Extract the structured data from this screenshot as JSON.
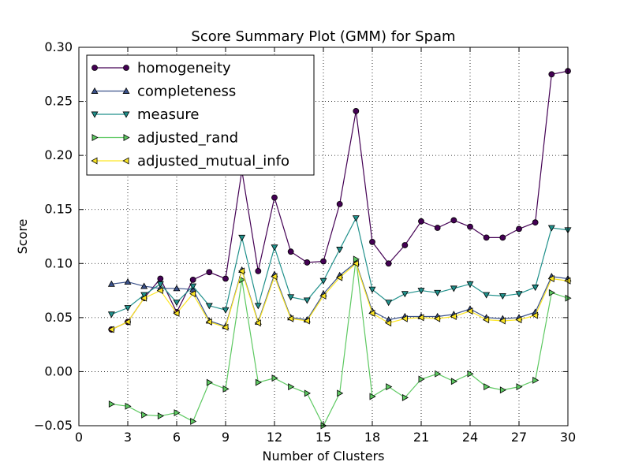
{
  "chart_data": {
    "type": "line",
    "title": "Score Summary Plot (GMM) for Spam",
    "xlabel": "Number of Clusters",
    "ylabel": "Score",
    "xlim": [
      0,
      30
    ],
    "ylim": [
      -0.05,
      0.3
    ],
    "xticks": [
      0,
      3,
      6,
      9,
      12,
      15,
      18,
      21,
      24,
      27,
      30
    ],
    "xtick_labels": [
      "0",
      "3",
      "6",
      "9",
      "12",
      "15",
      "18",
      "21",
      "24",
      "27",
      "30"
    ],
    "yticks": [
      -0.05,
      0.0,
      0.05,
      0.1,
      0.15,
      0.2,
      0.25,
      0.3
    ],
    "ytick_labels": [
      "−0.05",
      "0.00",
      "0.05",
      "0.10",
      "0.15",
      "0.20",
      "0.25",
      "0.30"
    ],
    "grid": true,
    "legend_position": "top-left",
    "x": [
      2,
      3,
      4,
      5,
      6,
      7,
      8,
      9,
      10,
      11,
      12,
      13,
      14,
      15,
      16,
      17,
      18,
      19,
      20,
      21,
      22,
      23,
      24,
      25,
      26,
      27,
      28,
      29,
      30
    ],
    "series": [
      {
        "name": "homogeneity",
        "color": "#440154",
        "marker": "circle",
        "values": [
          0.039,
          0.046,
          0.068,
          0.086,
          0.055,
          0.085,
          0.092,
          0.086,
          0.186,
          0.093,
          0.161,
          0.111,
          0.101,
          0.102,
          0.155,
          0.241,
          0.12,
          0.1,
          0.117,
          0.139,
          0.133,
          0.14,
          0.134,
          0.124,
          0.124,
          0.132,
          0.138,
          0.275,
          0.278
        ]
      },
      {
        "name": "completeness",
        "color": "#3b528b",
        "marker": "triangle-up",
        "values": [
          0.081,
          0.083,
          0.079,
          0.077,
          0.077,
          0.076,
          0.047,
          0.042,
          0.094,
          0.046,
          0.09,
          0.05,
          0.048,
          0.072,
          0.089,
          0.101,
          0.056,
          0.048,
          0.051,
          0.051,
          0.051,
          0.053,
          0.058,
          0.05,
          0.049,
          0.05,
          0.055,
          0.088,
          0.086
        ]
      },
      {
        "name": "measure",
        "color": "#21918c",
        "marker": "triangle-down",
        "values": [
          0.053,
          0.059,
          0.071,
          0.081,
          0.064,
          0.079,
          0.061,
          0.057,
          0.124,
          0.061,
          0.115,
          0.069,
          0.066,
          0.084,
          0.113,
          0.142,
          0.076,
          0.064,
          0.072,
          0.075,
          0.073,
          0.077,
          0.081,
          0.071,
          0.07,
          0.072,
          0.078,
          0.133,
          0.131
        ]
      },
      {
        "name": "adjusted_rand",
        "color": "#5ec962",
        "marker": "triangle-right",
        "values": [
          -0.03,
          -0.032,
          -0.04,
          -0.041,
          -0.038,
          -0.046,
          -0.01,
          -0.016,
          0.085,
          -0.01,
          -0.006,
          -0.014,
          -0.02,
          -0.05,
          -0.02,
          0.104,
          -0.023,
          -0.014,
          -0.024,
          -0.007,
          -0.002,
          -0.009,
          -0.002,
          -0.014,
          -0.017,
          -0.014,
          -0.008,
          0.073,
          0.068
        ]
      },
      {
        "name": "adjusted_mutual_info",
        "color": "#fde725",
        "marker": "triangle-left",
        "values": [
          0.039,
          0.046,
          0.068,
          0.075,
          0.054,
          0.072,
          0.046,
          0.041,
          0.093,
          0.045,
          0.088,
          0.049,
          0.047,
          0.07,
          0.087,
          0.1,
          0.054,
          0.045,
          0.049,
          0.05,
          0.049,
          0.051,
          0.056,
          0.048,
          0.047,
          0.048,
          0.052,
          0.086,
          0.084
        ]
      }
    ]
  }
}
